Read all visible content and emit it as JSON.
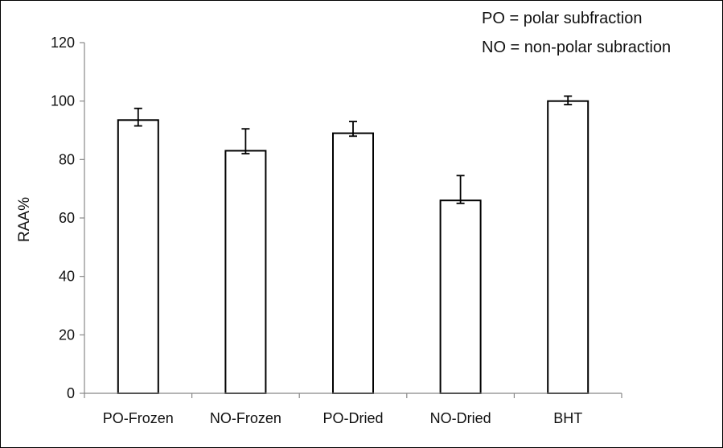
{
  "chart_data": {
    "type": "bar",
    "title": "",
    "xlabel": "",
    "ylabel": "RAA%",
    "ylim": [
      0,
      120
    ],
    "yticks": [
      0,
      20,
      40,
      60,
      80,
      100,
      120
    ],
    "categories": [
      "PO-Frozen",
      "NO-Frozen",
      "PO-Dried",
      "NO-Dried",
      "BHT"
    ],
    "values": [
      93.5,
      83,
      89,
      66,
      100
    ],
    "error_low": [
      2,
      1,
      1,
      1,
      1.2
    ],
    "error_high": [
      4,
      7.5,
      4,
      8.5,
      1.7
    ],
    "bar_fill": "#ffffff",
    "bar_stroke": "#000000",
    "grid": false,
    "annotations": [
      "PO = polar subfraction",
      "NO = non-polar subraction"
    ],
    "annotation_placement": "top-right"
  }
}
